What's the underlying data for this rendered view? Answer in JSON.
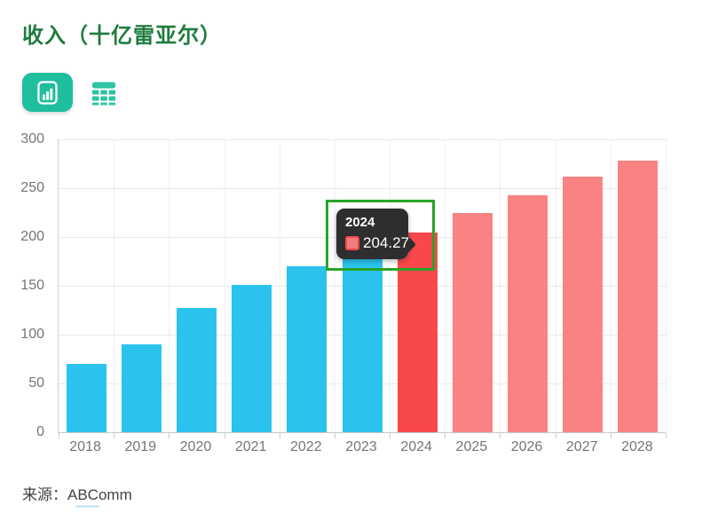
{
  "header": {
    "title": "收入（十亿雷亚尔）"
  },
  "toolbar": {
    "chart_view_button": {
      "name": "chart-view",
      "active": true,
      "color": "#1FBE9D"
    },
    "table_view_button": {
      "name": "table-view",
      "color": "#2EC3A3"
    }
  },
  "chart_data": {
    "type": "bar",
    "title": "收入（十亿雷亚尔）",
    "categories": [
      "2018",
      "2019",
      "2020",
      "2021",
      "2022",
      "2023",
      "2024",
      "2025",
      "2026",
      "2027",
      "2028"
    ],
    "series": [
      {
        "name": "收入",
        "values": [
          70,
          90,
          127,
          151,
          170,
          185,
          204.27,
          225,
          243,
          262,
          278
        ]
      }
    ],
    "bar_roles": [
      "historical",
      "historical",
      "historical",
      "historical",
      "historical",
      "historical",
      "highlight",
      "forecast",
      "forecast",
      "forecast",
      "forecast"
    ],
    "colors": {
      "historical": "#2BC2EE",
      "highlight": "#F8484C",
      "forecast": "#F98383"
    },
    "xlabel": "",
    "ylabel": "",
    "ylim": [
      0,
      300
    ],
    "yticks": [
      0,
      50,
      100,
      150,
      200,
      250,
      300
    ],
    "grid": true,
    "legend_position": "none"
  },
  "tooltip": {
    "title": "2024",
    "value": "204.27",
    "swatch_color": "#F8484C"
  },
  "annotation": {
    "highlight_year": "2024",
    "box_color": "#28A428"
  },
  "footer": {
    "source": "来源：ABComm"
  }
}
